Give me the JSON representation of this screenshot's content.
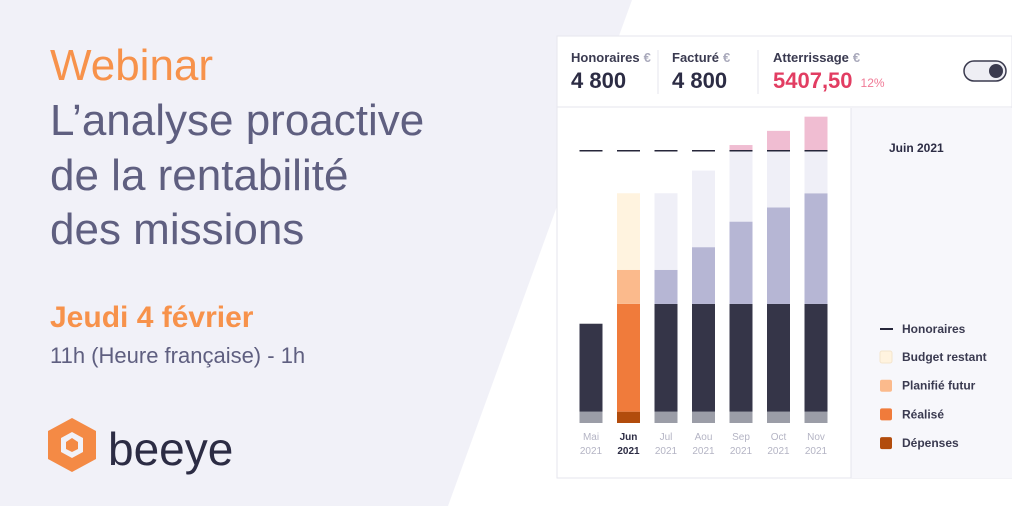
{
  "webinar": {
    "label": "Webinar",
    "title_lines": [
      "L’analyse proactive",
      "de la rentabilité",
      "des missions"
    ],
    "date": "Jeudi 4 février",
    "time": "11h (Heure française) - 1h",
    "brand": "beeye"
  },
  "kpis": [
    {
      "label": "Honoraires",
      "currency": "€",
      "value": "4 800"
    },
    {
      "label": "Facturé",
      "currency": "€",
      "value": "4 800"
    },
    {
      "label": "Atterrissage",
      "currency": "€",
      "value": "5407,50",
      "delta": "12%"
    }
  ],
  "chart_data": {
    "type": "stacked_bar",
    "selected_label": "Juin 2021",
    "categories": [
      "Mai",
      "Jun",
      "Jul",
      "Aou",
      "Sep",
      "Oct",
      "Nov"
    ],
    "category_years": [
      "2021",
      "2021",
      "2021",
      "2021",
      "2021",
      "2021",
      "2021"
    ],
    "highlight_index": 1,
    "ylim": [
      0,
      5500
    ],
    "series": [
      {
        "name": "Dépenses",
        "color": "#b24c0c",
        "muted_color": "#9b9da7",
        "values": [
          200,
          200,
          200,
          200,
          200,
          200,
          200
        ]
      },
      {
        "name": "Réalisé",
        "color": "#f07b3b",
        "muted_color": "#353548",
        "values": [
          1550,
          1900,
          1900,
          1900,
          1900,
          1900,
          1900
        ]
      },
      {
        "name": "Planifié futur",
        "color": "#fbba8c",
        "muted_color": "#b6b6d4",
        "values": [
          0,
          600,
          600,
          1000,
          1450,
          1700,
          1950
        ]
      },
      {
        "name": "Budget restant",
        "color": "#fff3df",
        "muted_color": "#efeff7",
        "values": [
          0,
          1350,
          1350,
          1350,
          1250,
          1000,
          750
        ]
      },
      {
        "color": "#f0bdd2",
        "muted_color": "#f0bdd2",
        "values": [
          0,
          0,
          0,
          0,
          100,
          350,
          600
        ]
      }
    ],
    "line_series": {
      "name": "Honoraires",
      "color": "#26263a",
      "values": [
        4800,
        4800,
        4800,
        4800,
        4800,
        4800,
        4800
      ]
    }
  }
}
